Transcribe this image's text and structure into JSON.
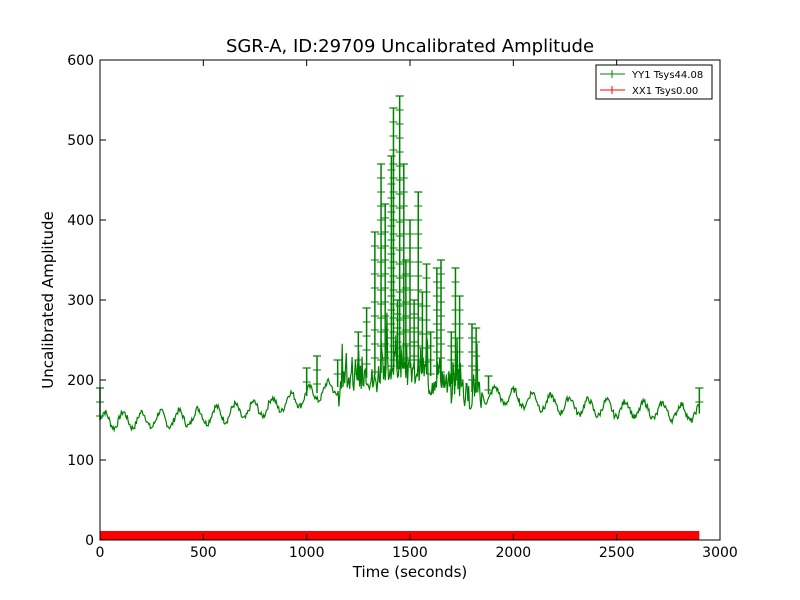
{
  "chart_data": {
    "type": "line",
    "title": "SGR-A, ID:29709 Uncalibrated Amplitude",
    "xlabel": "Time (seconds)",
    "ylabel": "Uncalibrated Amplitude",
    "xlim": [
      0,
      3000
    ],
    "ylim": [
      0,
      600
    ],
    "x_ticks": [
      "0",
      "500",
      "1000",
      "1500",
      "2000",
      "2500",
      "3000"
    ],
    "y_ticks": [
      "0",
      "100",
      "200",
      "300",
      "400",
      "500",
      "600"
    ],
    "grid": false,
    "legend_position": "top-right",
    "series": [
      {
        "name": "YY1 Tsys44.08",
        "color": "#008000",
        "marker": "+",
        "x_range": [
          0,
          2900
        ],
        "baseline_points": [
          [
            0,
            150
          ],
          [
            200,
            150
          ],
          [
            400,
            152
          ],
          [
            600,
            158
          ],
          [
            800,
            165
          ],
          [
            1000,
            180
          ],
          [
            1200,
            195
          ],
          [
            1400,
            212
          ],
          [
            1500,
            215
          ],
          [
            1600,
            205
          ],
          [
            1800,
            185
          ],
          [
            2000,
            178
          ],
          [
            2200,
            170
          ],
          [
            2400,
            165
          ],
          [
            2600,
            163
          ],
          [
            2800,
            160
          ],
          [
            2900,
            158
          ]
        ],
        "oscillation_period": 90,
        "oscillation_amplitude": 10,
        "spikes": [
          [
            0,
            190
          ],
          [
            1000,
            215
          ],
          [
            1050,
            230
          ],
          [
            1150,
            225
          ],
          [
            1250,
            260
          ],
          [
            1290,
            290
          ],
          [
            1330,
            385
          ],
          [
            1360,
            470
          ],
          [
            1380,
            420
          ],
          [
            1410,
            480
          ],
          [
            1420,
            540
          ],
          [
            1440,
            300
          ],
          [
            1450,
            555
          ],
          [
            1470,
            470
          ],
          [
            1480,
            350
          ],
          [
            1500,
            400
          ],
          [
            1520,
            300
          ],
          [
            1540,
            435
          ],
          [
            1560,
            310
          ],
          [
            1580,
            345
          ],
          [
            1600,
            260
          ],
          [
            1630,
            340
          ],
          [
            1650,
            350
          ],
          [
            1700,
            260
          ],
          [
            1720,
            340
          ],
          [
            1740,
            305
          ],
          [
            1800,
            270
          ],
          [
            1820,
            265
          ],
          [
            1880,
            205
          ],
          [
            2900,
            190
          ]
        ]
      },
      {
        "name": "XX1 Tsys0.00",
        "color": "#ff0000",
        "marker": "+",
        "x_range": [
          0,
          2900
        ],
        "value": 0
      }
    ]
  }
}
